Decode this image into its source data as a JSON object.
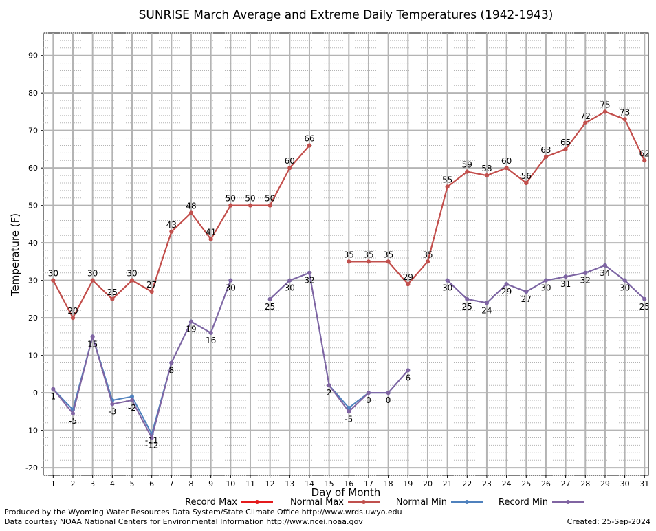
{
  "chart_data": {
    "type": "line",
    "title": "SUNRISE March Average and Extreme Daily Temperatures (1942-1943)",
    "xlabel": "Day of Month",
    "ylabel": "Temperature (F)",
    "ylim": [
      -22,
      96
    ],
    "xlim": [
      0.5,
      31.2
    ],
    "yticks": [
      -20,
      -10,
      0,
      10,
      20,
      30,
      40,
      50,
      60,
      70,
      80,
      90
    ],
    "x": [
      1,
      2,
      3,
      4,
      5,
      6,
      7,
      8,
      9,
      10,
      11,
      12,
      13,
      14,
      15,
      16,
      17,
      18,
      19,
      20,
      21,
      22,
      23,
      24,
      25,
      26,
      27,
      28,
      29,
      30,
      31
    ],
    "grid": true,
    "legend_position": "bottom",
    "series": [
      {
        "name": "Record Max",
        "color": "#e41a1c",
        "values": [
          30,
          20,
          30,
          25,
          30,
          27,
          43,
          48,
          41,
          50,
          50,
          50,
          60,
          66,
          null,
          35,
          35,
          35,
          29,
          35,
          55,
          59,
          58,
          60,
          56,
          63,
          65,
          72,
          75,
          73,
          62
        ]
      },
      {
        "name": "Normal Max",
        "color": "#c0504d",
        "values": [
          30,
          20,
          30,
          25,
          30,
          27,
          43,
          48,
          41,
          50,
          50,
          50,
          60,
          66,
          null,
          35,
          35,
          35,
          29,
          35,
          55,
          59,
          58,
          60,
          56,
          63,
          65,
          72,
          75,
          73,
          62
        ],
        "labels": [
          "30",
          "20",
          "30",
          "25",
          "30",
          "27",
          "43",
          "48",
          "41",
          "50",
          "50",
          "50",
          "60",
          "66",
          "",
          "35",
          "35",
          "35",
          "29",
          "35",
          "55",
          "59",
          "58",
          "60",
          "56",
          "63",
          "65",
          "72",
          "75",
          "73",
          "62"
        ]
      },
      {
        "name": "Normal Min",
        "color": "#4f81bd",
        "values": [
          1,
          -4.5,
          15,
          -2,
          -1,
          -11,
          8,
          19,
          16,
          30,
          null,
          25,
          30,
          32,
          2,
          -4,
          0,
          0,
          6,
          null,
          30,
          25,
          24,
          29,
          27,
          30,
          31,
          32,
          34,
          30,
          25
        ]
      },
      {
        "name": "Record Min",
        "color": "#8064a2",
        "values": [
          1,
          -5.5,
          15,
          -3,
          -2,
          -12,
          8,
          19,
          16,
          30,
          null,
          25,
          30,
          32,
          2,
          -5,
          0,
          0,
          6,
          null,
          30,
          25,
          24,
          29,
          27,
          30,
          31,
          32,
          34,
          30,
          25
        ],
        "labels": [
          "1",
          "-5",
          "15",
          "-3",
          "-2",
          "-12",
          "8",
          "19",
          "16",
          "30",
          "",
          "25",
          "30",
          "32",
          "2",
          "-5",
          "0",
          "0",
          "6",
          "",
          "30",
          "25",
          "24",
          "29",
          "27",
          "30",
          "31",
          "32",
          "34",
          "30",
          "25"
        ],
        "extra_labels": [
          {
            "x": 6,
            "text": "-11"
          }
        ]
      }
    ]
  },
  "footer": {
    "left_line1": "Produced by the Wyoming Water Resources Data System/State Climate Office http://www.wrds.uwyo.edu",
    "left_line2": "Data courtesy NOAA National Centers for Environmental Information http://www.ncei.noaa.gov",
    "created": "Created:  25-Sep-2024"
  }
}
